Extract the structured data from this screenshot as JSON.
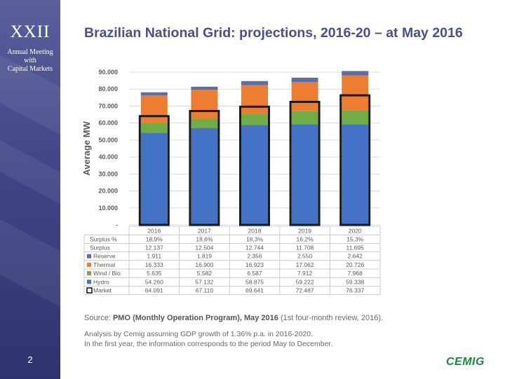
{
  "sidebar": {
    "numeral": "XXII",
    "subtitle_line1": "Annual Meeting",
    "subtitle_line2": "with",
    "subtitle_line3": "Capital Markets",
    "page_number": "2",
    "bg_color": "#3f4585"
  },
  "title": "Brazilian National Grid: projections, 2016-20 – at May 2016",
  "footer": {
    "source_prefix": "Source: ",
    "source_bold": "PMO (Monthly Operation Program), May 2016",
    "source_suffix": " (1st four-month review, 2016).",
    "analysis_line1": "Analysis by Cemig assuming GDP growth of 1.36% p.a. in 2016-2020.",
    "analysis_line2": "In the first year, the information corresponds to the period May to December."
  },
  "logo_text": "CEMIG",
  "chart_data": {
    "type": "bar",
    "stacked": true,
    "ylabel": "Average MW",
    "ylim": [
      0,
      90000
    ],
    "yticks": [
      "-",
      "10.000",
      "20.000",
      "30.000",
      "40.000",
      "50.000",
      "60.000",
      "70.000",
      "80.000",
      "90.000"
    ],
    "categories": [
      "2016",
      "2017",
      "2018",
      "2019",
      "2020"
    ],
    "series": [
      {
        "name": "Hydro",
        "color": "#4472c4",
        "values": [
          54260,
          57132,
          58875,
          59222,
          59338
        ],
        "display": [
          "54.260",
          "57.132",
          "58.875",
          "59.222",
          "59.338"
        ]
      },
      {
        "name": "Wind / Bio",
        "color": "#70ad47",
        "values": [
          5635,
          5582,
          6587,
          7912,
          7968
        ],
        "display": [
          "5.635",
          "5.582",
          "6.587",
          "7.912",
          "7.968"
        ]
      },
      {
        "name": "Thermal",
        "color": "#ed7d31",
        "values": [
          16333,
          16900,
          16923,
          17062,
          20726
        ],
        "display": [
          "16.333",
          "16.900",
          "16.923",
          "17.062",
          "20.726"
        ]
      },
      {
        "name": "Reserve",
        "color": "#5b6ea6",
        "values": [
          1911,
          1819,
          2356,
          2550,
          2642
        ],
        "display": [
          "1.911",
          "1.819",
          "2.356",
          "2.550",
          "2.642"
        ]
      }
    ],
    "market": {
      "name": "Market",
      "values": [
        64091,
        67110,
        69641,
        72487,
        76337
      ],
      "display": [
        "64.091",
        "67.110",
        "69.641",
        "72.487",
        "76.337"
      ]
    },
    "table_rows": [
      {
        "label": "Surplus %",
        "marker": "none",
        "cells": [
          "18,9%",
          "18,6%",
          "18,3%",
          "16,2%",
          "15,3%"
        ]
      },
      {
        "label": "Surplus",
        "marker": "none",
        "cells": [
          "12.137",
          "12.504",
          "12.744",
          "11.708",
          "11.695"
        ]
      },
      {
        "label": "Reserve",
        "marker": "#5b6ea6",
        "cells": [
          "1.911",
          "1.819",
          "2.356",
          "2.550",
          "2.642"
        ]
      },
      {
        "label": "Thermal",
        "marker": "#ed7d31",
        "cells": [
          "16.333",
          "16.900",
          "16.923",
          "17.062",
          "20.726"
        ]
      },
      {
        "label": "Wind / Bio",
        "marker": "#70ad47",
        "cells": [
          "5.635",
          "5.582",
          "6.587",
          "7.912",
          "7.968"
        ]
      },
      {
        "label": "Hydro",
        "marker": "#4472c4",
        "cells": [
          "54.260",
          "57.132",
          "58.875",
          "59.222",
          "59.338"
        ]
      },
      {
        "label": "Market",
        "marker": "market",
        "cells": [
          "64.091",
          "67.110",
          "69.641",
          "72.487",
          "76.337"
        ]
      }
    ],
    "grid": true,
    "legend": "table-below"
  }
}
